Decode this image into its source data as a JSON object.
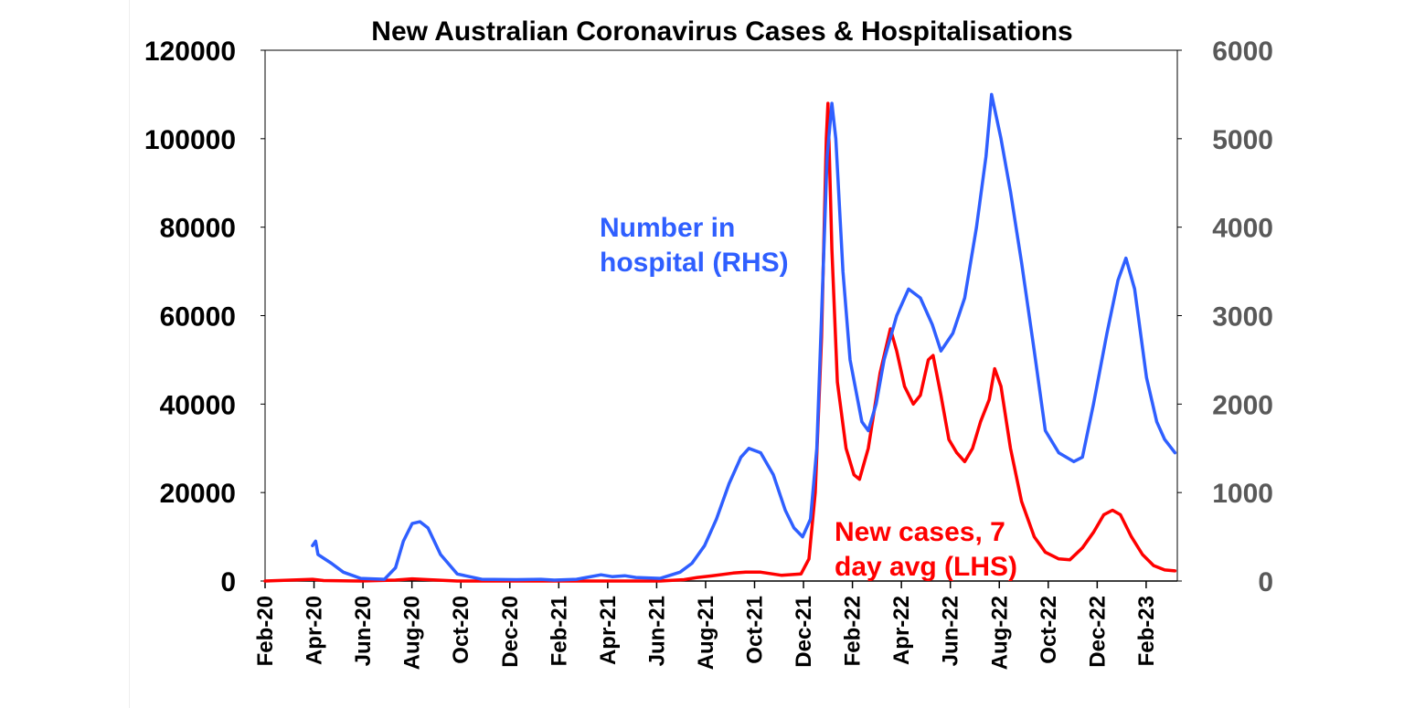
{
  "chart_data": {
    "type": "line",
    "title": "New Australian Coronavirus Cases & Hospitalisations",
    "x_tick_labels": [
      "Feb-20",
      "Apr-20",
      "Jun-20",
      "Aug-20",
      "Oct-20",
      "Dec-20",
      "Feb-21",
      "Apr-21",
      "Jun-21",
      "Aug-21",
      "Oct-21",
      "Dec-21",
      "Feb-22",
      "Apr-22",
      "Jun-22",
      "Aug-22",
      "Oct-22",
      "Dec-22",
      "Feb-23"
    ],
    "x_range": [
      "2020-02-01",
      "2023-03-31"
    ],
    "y_left": {
      "range": [
        0,
        120000
      ],
      "ticks": [
        "0",
        "20000",
        "40000",
        "60000",
        "80000",
        "100000",
        "120000"
      ]
    },
    "y_right": {
      "range": [
        0,
        6000
      ],
      "ticks": [
        "0",
        "1000",
        "2000",
        "3000",
        "4000",
        "5000",
        "6000"
      ]
    },
    "grid": false,
    "series": [
      {
        "name": "New cases, 7 day avg (LHS)",
        "label_lines": [
          "New cases, 7",
          "day avg (LHS)"
        ],
        "axis": "left",
        "color": "#ff0000",
        "points": [
          [
            "2020-02-01",
            0
          ],
          [
            "2020-03-20",
            300
          ],
          [
            "2020-04-01",
            400
          ],
          [
            "2020-04-15",
            100
          ],
          [
            "2020-06-01",
            0
          ],
          [
            "2020-07-15",
            200
          ],
          [
            "2020-08-05",
            500
          ],
          [
            "2020-08-25",
            300
          ],
          [
            "2020-10-01",
            0
          ],
          [
            "2021-03-01",
            0
          ],
          [
            "2021-06-15",
            0
          ],
          [
            "2021-07-15",
            300
          ],
          [
            "2021-08-01",
            800
          ],
          [
            "2021-08-20",
            1200
          ],
          [
            "2021-09-15",
            1800
          ],
          [
            "2021-10-01",
            2000
          ],
          [
            "2021-10-20",
            2000
          ],
          [
            "2021-11-15",
            1300
          ],
          [
            "2021-12-10",
            1600
          ],
          [
            "2021-12-20",
            5000
          ],
          [
            "2021-12-28",
            20000
          ],
          [
            "2022-01-05",
            55000
          ],
          [
            "2022-01-11",
            100000
          ],
          [
            "2022-01-13",
            108000
          ],
          [
            "2022-01-18",
            75000
          ],
          [
            "2022-01-25",
            45000
          ],
          [
            "2022-02-05",
            30000
          ],
          [
            "2022-02-15",
            24000
          ],
          [
            "2022-02-22",
            23000
          ],
          [
            "2022-03-05",
            30000
          ],
          [
            "2022-03-20",
            47000
          ],
          [
            "2022-04-02",
            57000
          ],
          [
            "2022-04-10",
            52000
          ],
          [
            "2022-04-20",
            44000
          ],
          [
            "2022-05-01",
            40000
          ],
          [
            "2022-05-10",
            42000
          ],
          [
            "2022-05-20",
            50000
          ],
          [
            "2022-05-26",
            51000
          ],
          [
            "2022-06-05",
            42000
          ],
          [
            "2022-06-15",
            32000
          ],
          [
            "2022-06-25",
            29000
          ],
          [
            "2022-07-05",
            27000
          ],
          [
            "2022-07-15",
            30000
          ],
          [
            "2022-07-25",
            36000
          ],
          [
            "2022-08-05",
            41000
          ],
          [
            "2022-08-12",
            48000
          ],
          [
            "2022-08-20",
            44000
          ],
          [
            "2022-09-01",
            30000
          ],
          [
            "2022-09-15",
            18000
          ],
          [
            "2022-10-01",
            10000
          ],
          [
            "2022-10-15",
            6500
          ],
          [
            "2022-11-01",
            5000
          ],
          [
            "2022-11-15",
            4800
          ],
          [
            "2022-12-01",
            7500
          ],
          [
            "2022-12-15",
            11000
          ],
          [
            "2022-12-28",
            15000
          ],
          [
            "2023-01-08",
            16000
          ],
          [
            "2023-01-18",
            15000
          ],
          [
            "2023-02-01",
            10000
          ],
          [
            "2023-02-15",
            6000
          ],
          [
            "2023-03-01",
            3500
          ],
          [
            "2023-03-15",
            2500
          ],
          [
            "2023-03-28",
            2300
          ]
        ]
      },
      {
        "name": "Number in hospital (RHS)",
        "label_lines": [
          "Number in",
          "hospital (RHS)"
        ],
        "axis": "right",
        "color": "#2f5fff",
        "points": [
          [
            "2020-04-01",
            400
          ],
          [
            "2020-04-05",
            450
          ],
          [
            "2020-04-08",
            300
          ],
          [
            "2020-04-25",
            200
          ],
          [
            "2020-05-10",
            100
          ],
          [
            "2020-06-01",
            30
          ],
          [
            "2020-07-01",
            20
          ],
          [
            "2020-07-15",
            150
          ],
          [
            "2020-07-25",
            450
          ],
          [
            "2020-08-05",
            650
          ],
          [
            "2020-08-15",
            670
          ],
          [
            "2020-08-25",
            600
          ],
          [
            "2020-09-10",
            300
          ],
          [
            "2020-10-01",
            80
          ],
          [
            "2020-11-01",
            20
          ],
          [
            "2020-12-15",
            15
          ],
          [
            "2021-01-15",
            20
          ],
          [
            "2021-02-01",
            10
          ],
          [
            "2021-03-01",
            20
          ],
          [
            "2021-04-01",
            70
          ],
          [
            "2021-04-15",
            50
          ],
          [
            "2021-05-01",
            60
          ],
          [
            "2021-05-15",
            40
          ],
          [
            "2021-06-15",
            30
          ],
          [
            "2021-07-10",
            100
          ],
          [
            "2021-07-25",
            200
          ],
          [
            "2021-08-10",
            400
          ],
          [
            "2021-08-25",
            700
          ],
          [
            "2021-09-10",
            1100
          ],
          [
            "2021-09-25",
            1400
          ],
          [
            "2021-10-05",
            1500
          ],
          [
            "2021-10-20",
            1450
          ],
          [
            "2021-11-05",
            1200
          ],
          [
            "2021-11-20",
            800
          ],
          [
            "2021-12-01",
            600
          ],
          [
            "2021-12-12",
            500
          ],
          [
            "2021-12-22",
            700
          ],
          [
            "2021-12-30",
            1500
          ],
          [
            "2022-01-05",
            3000
          ],
          [
            "2022-01-12",
            4800
          ],
          [
            "2022-01-18",
            5400
          ],
          [
            "2022-01-23",
            5000
          ],
          [
            "2022-02-01",
            3500
          ],
          [
            "2022-02-10",
            2500
          ],
          [
            "2022-02-25",
            1800
          ],
          [
            "2022-03-05",
            1700
          ],
          [
            "2022-03-15",
            2000
          ],
          [
            "2022-03-25",
            2500
          ],
          [
            "2022-04-10",
            3000
          ],
          [
            "2022-04-25",
            3300
          ],
          [
            "2022-05-10",
            3200
          ],
          [
            "2022-05-25",
            2900
          ],
          [
            "2022-06-05",
            2600
          ],
          [
            "2022-06-20",
            2800
          ],
          [
            "2022-07-05",
            3200
          ],
          [
            "2022-07-20",
            4000
          ],
          [
            "2022-08-01",
            4800
          ],
          [
            "2022-08-08",
            5500
          ],
          [
            "2022-08-20",
            5000
          ],
          [
            "2022-09-01",
            4400
          ],
          [
            "2022-09-15",
            3600
          ],
          [
            "2022-10-01",
            2600
          ],
          [
            "2022-10-15",
            1700
          ],
          [
            "2022-11-01",
            1450
          ],
          [
            "2022-11-20",
            1350
          ],
          [
            "2022-12-01",
            1400
          ],
          [
            "2022-12-15",
            2000
          ],
          [
            "2023-01-01",
            2800
          ],
          [
            "2023-01-15",
            3400
          ],
          [
            "2023-01-25",
            3650
          ],
          [
            "2023-02-05",
            3300
          ],
          [
            "2023-02-20",
            2300
          ],
          [
            "2023-03-05",
            1800
          ],
          [
            "2023-03-15",
            1600
          ],
          [
            "2023-03-28",
            1450
          ]
        ]
      }
    ]
  }
}
